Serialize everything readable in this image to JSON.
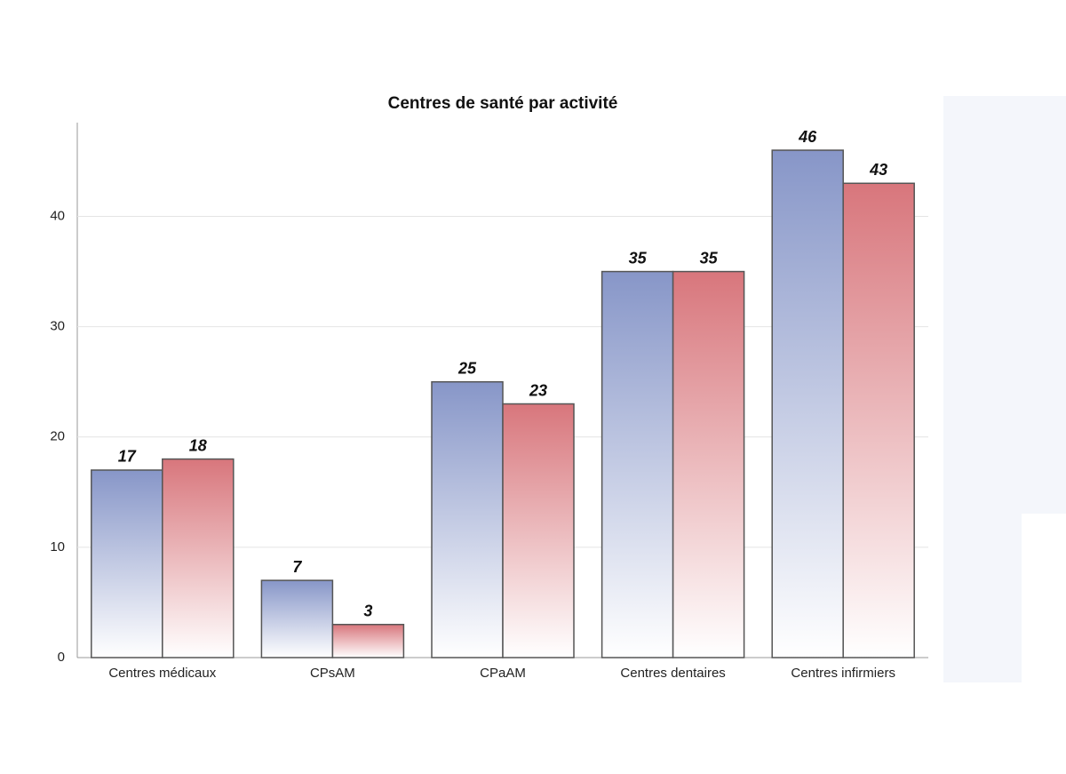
{
  "chart_data": {
    "type": "bar",
    "title": "Centres de santé par activité",
    "categories": [
      "Centres médicaux",
      "CPsAM",
      "CPaAM",
      "Centres dentaires",
      "Centres infirmiers"
    ],
    "series": [
      {
        "color": "#8796c8",
        "values": [
          17,
          7,
          25,
          35,
          46
        ]
      },
      {
        "color": "#d8767c",
        "values": [
          18,
          3,
          23,
          35,
          43
        ]
      }
    ],
    "ylim": [
      0,
      48.5
    ],
    "yticks": [
      0,
      10,
      20,
      30,
      40
    ],
    "grid": true
  }
}
